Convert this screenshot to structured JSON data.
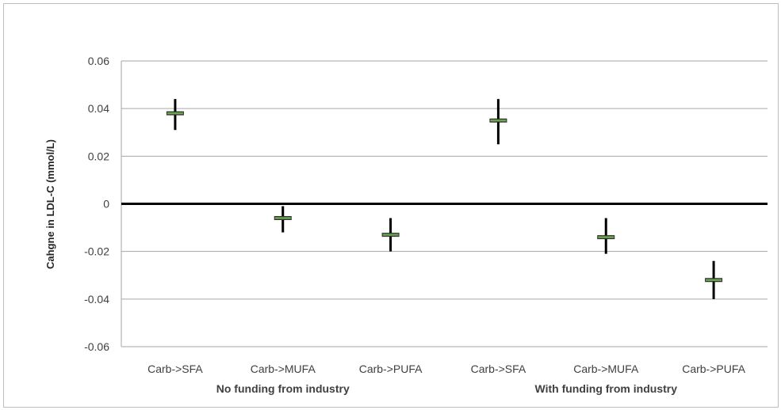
{
  "chart_data": {
    "type": "scatter",
    "title": "",
    "ylabel": "Cahgne in LDL-C (mmol/L)",
    "ylim": [
      -0.06,
      0.06
    ],
    "yticks": [
      0.06,
      0.04,
      0.02,
      0,
      -0.02,
      -0.04,
      -0.06
    ],
    "ytick_labels": [
      "0.06",
      "0.04",
      "0.02",
      "0",
      "-0.02",
      "-0.04",
      "-0.06"
    ],
    "grid": true,
    "categories": [
      "Carb->SFA",
      "Carb->MUFA",
      "Carb->PUFA",
      "Carb->SFA",
      "Carb->MUFA",
      "Carb->PUFA"
    ],
    "groups": [
      {
        "label": "No funding  from industry",
        "span": [
          0,
          2
        ]
      },
      {
        "label": "With funding from industry",
        "span": [
          3,
          5
        ]
      }
    ],
    "points": [
      {
        "category": "Carb->SFA",
        "value": 0.038,
        "low": 0.031,
        "high": 0.044
      },
      {
        "category": "Carb->MUFA",
        "value": -0.006,
        "low": -0.012,
        "high": -0.001
      },
      {
        "category": "Carb->PUFA",
        "value": -0.013,
        "low": -0.02,
        "high": -0.006
      },
      {
        "category": "Carb->SFA",
        "value": 0.035,
        "low": 0.025,
        "high": 0.044
      },
      {
        "category": "Carb->MUFA",
        "value": -0.014,
        "low": -0.021,
        "high": -0.006
      },
      {
        "category": "Carb->PUFA",
        "value": -0.032,
        "low": -0.04,
        "high": -0.024
      }
    ],
    "colors": {
      "marker": "#6aa84f",
      "errorbar": "#000000",
      "zero_line": "#000000",
      "grid": "#a6a6a6"
    }
  }
}
